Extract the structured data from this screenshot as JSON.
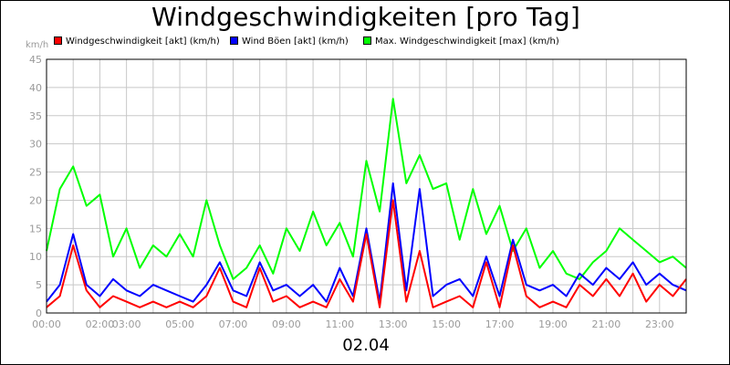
{
  "title": "Windgeschwindigkeiten [pro Tag]",
  "ylabel": "km/h",
  "date_label": "02.04",
  "legend": [
    {
      "label": "Windgeschwindigkeit [akt] (km/h)",
      "color": "#ff0000",
      "icon": "red-swatch-icon"
    },
    {
      "label": "Wind Böen [akt] (km/h)",
      "color": "#0000ff",
      "icon": "blue-swatch-icon"
    },
    {
      "label": "Max. Windgeschwindigkeit [max] (km/h)",
      "color": "#00ff00",
      "icon": "green-swatch-icon"
    }
  ],
  "chart_data": {
    "type": "line",
    "title": "Windgeschwindigkeiten [pro Tag]",
    "xlabel": "02.04",
    "ylabel": "km/h",
    "xlim": [
      0,
      24
    ],
    "ylim": [
      0,
      45
    ],
    "grid": true,
    "legend_position": "top",
    "x_ticks": [
      {
        "x": 0,
        "label": "00:00"
      },
      {
        "x": 2,
        "label": "02:00"
      },
      {
        "x": 3,
        "label": "03:00"
      },
      {
        "x": 5,
        "label": "05:00"
      },
      {
        "x": 7,
        "label": "07:00"
      },
      {
        "x": 9,
        "label": "09:00"
      },
      {
        "x": 11,
        "label": "11:00"
      },
      {
        "x": 13,
        "label": "13:00"
      },
      {
        "x": 15,
        "label": "15:00"
      },
      {
        "x": 17,
        "label": "17:00"
      },
      {
        "x": 19,
        "label": "19:00"
      },
      {
        "x": 21,
        "label": "21:00"
      },
      {
        "x": 23,
        "label": "23:00"
      }
    ],
    "y_ticks": [
      0,
      5,
      10,
      15,
      20,
      25,
      30,
      35,
      40,
      45
    ],
    "x": [
      0,
      0.5,
      1,
      1.5,
      2,
      2.5,
      3,
      3.5,
      4,
      4.5,
      5,
      5.5,
      6,
      6.5,
      7,
      7.5,
      8,
      8.5,
      9,
      9.5,
      10,
      10.5,
      11,
      11.5,
      12,
      12.5,
      13,
      13.5,
      14,
      14.5,
      15,
      15.5,
      16,
      16.5,
      17,
      17.5,
      18,
      18.5,
      19,
      19.5,
      20,
      20.5,
      21,
      21.5,
      22,
      22.5,
      23,
      23.5,
      24
    ],
    "series": [
      {
        "name": "Windgeschwindigkeit [akt] (km/h)",
        "color": "#ff0000",
        "values": [
          1,
          3,
          12,
          4,
          1,
          3,
          2,
          1,
          2,
          1,
          2,
          1,
          3,
          8,
          2,
          1,
          8,
          2,
          3,
          1,
          2,
          1,
          6,
          2,
          14,
          1,
          20,
          2,
          11,
          1,
          2,
          3,
          1,
          9,
          1,
          12,
          3,
          1,
          2,
          1,
          5,
          3,
          6,
          3,
          7,
          2,
          5,
          3,
          6
        ]
      },
      {
        "name": "Wind Böen [akt] (km/h)",
        "color": "#0000ff",
        "values": [
          2,
          5,
          14,
          5,
          3,
          6,
          4,
          3,
          5,
          4,
          3,
          2,
          5,
          9,
          4,
          3,
          9,
          4,
          5,
          3,
          5,
          2,
          8,
          3,
          15,
          2,
          23,
          4,
          22,
          3,
          5,
          6,
          3,
          10,
          3,
          13,
          5,
          4,
          5,
          3,
          7,
          5,
          8,
          6,
          9,
          5,
          7,
          5,
          4
        ]
      },
      {
        "name": "Max. Windgeschwindigkeit [max] (km/h)",
        "color": "#00ff00",
        "values": [
          11,
          22,
          26,
          19,
          21,
          10,
          15,
          8,
          12,
          10,
          14,
          10,
          20,
          12,
          6,
          8,
          12,
          7,
          15,
          11,
          18,
          12,
          16,
          10,
          27,
          18,
          38,
          23,
          28,
          22,
          23,
          13,
          22,
          14,
          19,
          11,
          15,
          8,
          11,
          7,
          6,
          9,
          11,
          15,
          13,
          11,
          9,
          10,
          8
        ]
      }
    ]
  }
}
